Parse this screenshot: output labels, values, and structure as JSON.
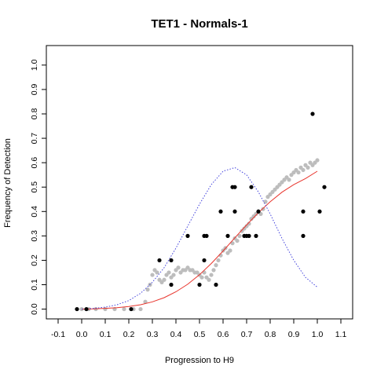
{
  "chart_data": {
    "type": "scatter",
    "title": "TET1 - Normals-1",
    "xlabel": "Progression to H9",
    "ylabel": "Frequency of Detection",
    "xlim": [
      -0.15,
      1.15
    ],
    "ylim": [
      -0.04,
      1.08
    ],
    "xticks": [
      "-0.1",
      "0.0",
      "0.1",
      "0.2",
      "0.3",
      "0.4",
      "0.5",
      "0.6",
      "0.7",
      "0.8",
      "0.9",
      "1.0",
      "1.1"
    ],
    "yticks": [
      "0.0",
      "0.1",
      "0.2",
      "0.3",
      "0.4",
      "0.5",
      "0.6",
      "0.7",
      "0.8",
      "0.9",
      "1.0"
    ],
    "grid": false,
    "colors": {
      "observed": "#000000",
      "smoothed": "#bdbdbd",
      "fit": "#e8342c",
      "density": "#4444dd"
    },
    "series": [
      {
        "style": "points-black",
        "x": [
          -0.02,
          0.02,
          0.21,
          0.33,
          0.38,
          0.38,
          0.45,
          0.52,
          0.52,
          0.53,
          0.5,
          0.57,
          0.59,
          0.62,
          0.64,
          0.65,
          0.65,
          0.69,
          0.7,
          0.71,
          0.72,
          0.74,
          0.75,
          0.94,
          0.94,
          0.98,
          1.01,
          1.03
        ],
        "y": [
          0.0,
          0.0,
          0.0,
          0.2,
          0.1,
          0.2,
          0.3,
          0.2,
          0.3,
          0.3,
          0.1,
          0.1,
          0.4,
          0.3,
          0.5,
          0.5,
          0.4,
          0.3,
          0.3,
          0.3,
          0.5,
          0.3,
          0.4,
          0.4,
          0.3,
          0.8,
          0.4,
          0.5
        ]
      },
      {
        "style": "points-grey",
        "x": [
          0.0,
          0.03,
          0.06,
          0.1,
          0.14,
          0.18,
          0.22,
          0.25,
          0.27,
          0.28,
          0.29,
          0.3,
          0.31,
          0.32,
          0.33,
          0.34,
          0.35,
          0.36,
          0.37,
          0.38,
          0.39,
          0.4,
          0.41,
          0.42,
          0.43,
          0.44,
          0.45,
          0.46,
          0.47,
          0.48,
          0.49,
          0.5,
          0.51,
          0.52,
          0.53,
          0.54,
          0.55,
          0.56,
          0.57,
          0.58,
          0.59,
          0.6,
          0.61,
          0.62,
          0.63,
          0.64,
          0.65,
          0.66,
          0.67,
          0.68,
          0.69,
          0.7,
          0.71,
          0.72,
          0.73,
          0.74,
          0.75,
          0.76,
          0.77,
          0.78,
          0.79,
          0.8,
          0.81,
          0.82,
          0.83,
          0.84,
          0.85,
          0.86,
          0.87,
          0.88,
          0.89,
          0.9,
          0.91,
          0.92,
          0.93,
          0.94,
          0.95,
          0.96,
          0.97,
          0.98,
          0.99,
          1.0
        ],
        "y": [
          0.0,
          0.0,
          0.0,
          0.0,
          0.0,
          0.0,
          0.0,
          0.0,
          0.03,
          0.08,
          0.1,
          0.14,
          0.16,
          0.15,
          0.12,
          0.11,
          0.12,
          0.14,
          0.15,
          0.13,
          0.14,
          0.16,
          0.17,
          0.15,
          0.16,
          0.16,
          0.17,
          0.16,
          0.16,
          0.15,
          0.15,
          0.14,
          0.13,
          0.15,
          0.13,
          0.12,
          0.14,
          0.16,
          0.18,
          0.2,
          0.22,
          0.24,
          0.25,
          0.23,
          0.24,
          0.27,
          0.29,
          0.28,
          0.3,
          0.32,
          0.33,
          0.34,
          0.35,
          0.37,
          0.38,
          0.39,
          0.4,
          0.39,
          0.41,
          0.44,
          0.46,
          0.47,
          0.48,
          0.49,
          0.5,
          0.51,
          0.52,
          0.53,
          0.54,
          0.53,
          0.55,
          0.56,
          0.57,
          0.56,
          0.58,
          0.57,
          0.59,
          0.58,
          0.6,
          0.59,
          0.6,
          0.61
        ]
      },
      {
        "style": "line-red",
        "x": [
          0.0,
          0.05,
          0.1,
          0.15,
          0.2,
          0.25,
          0.3,
          0.35,
          0.4,
          0.45,
          0.5,
          0.55,
          0.6,
          0.65,
          0.7,
          0.75,
          0.8,
          0.85,
          0.9,
          0.95,
          1.0
        ],
        "y": [
          0.0,
          0.001,
          0.003,
          0.006,
          0.011,
          0.018,
          0.03,
          0.047,
          0.071,
          0.102,
          0.141,
          0.187,
          0.238,
          0.292,
          0.345,
          0.395,
          0.44,
          0.479,
          0.51,
          0.535,
          0.565
        ]
      },
      {
        "style": "line-blue-dotted",
        "x": [
          0.0,
          0.05,
          0.1,
          0.15,
          0.2,
          0.25,
          0.3,
          0.35,
          0.4,
          0.45,
          0.5,
          0.55,
          0.6,
          0.65,
          0.7,
          0.75,
          0.8,
          0.85,
          0.9,
          0.95,
          1.0
        ],
        "y": [
          0.0,
          0.003,
          0.008,
          0.018,
          0.035,
          0.065,
          0.11,
          0.17,
          0.25,
          0.34,
          0.43,
          0.51,
          0.565,
          0.58,
          0.55,
          0.48,
          0.39,
          0.29,
          0.2,
          0.13,
          0.09
        ]
      }
    ]
  }
}
